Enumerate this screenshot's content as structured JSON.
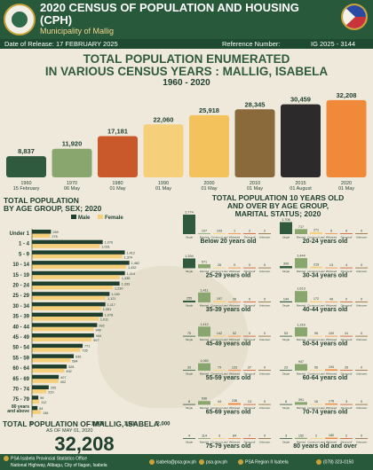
{
  "header": {
    "title": "2020 CENSUS OF POPULATION AND HOUSING (CPH)",
    "municipality": "Municipality of Mallig",
    "release_label": "Date of Release: 17 FEBRUARY 2025",
    "ref_label": "Reference Number:",
    "ref_value": "IG 2025 - 3144"
  },
  "main_title_line1": "TOTAL POPULATION ENUMERATED",
  "main_title_line2": "IN VARIOUS CENSUS YEARS : MALLIG, ISABELA",
  "range": "1960 - 2020",
  "colors": {
    "header": "#27593a",
    "male": "#1f3f2e",
    "female": "#f6cf7a",
    "accent": "#f08a3a"
  },
  "chart_data": [
    {
      "type": "bar",
      "title": "TOTAL POPULATION ENUMERATED IN VARIOUS CENSUS YEARS : MALLIG, ISABELA",
      "subtitle": "1960 - 2020",
      "categories": [
        "1960\n15 February",
        "1970\n06 May",
        "1980\n01 May",
        "1990\n01 May",
        "2000\n01 May",
        "2010\n01 May",
        "2015\n01 August",
        "2020\n01 May"
      ],
      "years": [
        "1960",
        "1970",
        "1980",
        "1990",
        "2000",
        "2010",
        "2015",
        "2020"
      ],
      "dates": [
        "15 February",
        "06 May",
        "01 May",
        "01 May",
        "01 May",
        "01 May",
        "01 August",
        "01 May"
      ],
      "values": [
        8837,
        11920,
        17181,
        22060,
        25918,
        28345,
        30459,
        32208
      ],
      "value_labels": [
        "8,837",
        "11,920",
        "17,181",
        "22,060",
        "25,918",
        "28,345",
        "30,459",
        "32,208"
      ],
      "bar_colors": [
        "#2f5a3e",
        "#8aa66f",
        "#c9582a",
        "#f6cf7a",
        "#f3c25c",
        "#8a6a3a",
        "#2c2a2a",
        "#f08a3a"
      ],
      "ylim": [
        0,
        34000
      ],
      "grid": false
    },
    {
      "type": "bar",
      "orientation": "horizontal",
      "title": "TOTAL POPULATION BY AGE GROUP, SEX; 2020",
      "legend": [
        "Male",
        "Female"
      ],
      "categories": [
        "Under 1",
        "1 - 4",
        "5 - 9",
        "10 - 14",
        "15 - 19",
        "20 - 24",
        "25 - 29",
        "30 - 34",
        "35 - 39",
        "40 - 44",
        "45 - 49",
        "50 - 54",
        "55 - 59",
        "60 - 64",
        "65 - 69",
        "70 - 74",
        "75 - 79",
        "80 years and above"
      ],
      "series": [
        {
          "name": "Male",
          "values": [
            289,
            1076,
            1412,
            1482,
            1414,
            1333,
            1180,
            1117,
            1078,
            992,
            944,
            771,
            635,
            528,
            407,
            255,
            96,
            84
          ]
        },
        {
          "name": "Female",
          "values": [
            276,
            1031,
            1374,
            1432,
            1336,
            1230,
            1121,
            1051,
            1011,
            940,
            907,
            735,
            584,
            492,
            402,
            220,
            112,
            136
          ]
        }
      ],
      "xlim": [
        0,
        2000
      ],
      "xticks": [
        "0",
        "1,000",
        "1,500",
        "2,000"
      ]
    },
    {
      "type": "bar",
      "title": "TOTAL POPULATION 10 YEARS OLD AND OVER BY AGE GROUP, MARITAL STATUS; 2020",
      "categories": [
        "Single",
        "Married",
        "Common Law/ Live-in",
        "Widowed",
        "Divorced/ Separated",
        "Unknown"
      ],
      "panels": [
        {
          "label": "Below 20 years old",
          "values": [
            2774,
            107,
            103,
            1,
            2,
            2
          ]
        },
        {
          "label": "20-24 years old",
          "values": [
            1706,
            717,
            271,
            5,
            9,
            0
          ]
        },
        {
          "label": "25-29 years old",
          "values": [
            1394,
            571,
            26,
            0,
            0,
            0
          ]
        },
        {
          "label": "30-34 years old",
          "values": [
            309,
            1444,
            219,
            13,
            4,
            0
          ]
        },
        {
          "label": "35-39 years old",
          "values": [
            255,
            1411,
            197,
            26,
            0,
            0
          ]
        },
        {
          "label": "40-44 years old",
          "values": [
            144,
            1613,
            172,
            49,
            0,
            0
          ]
        },
        {
          "label": "45-49 years old",
          "values": [
            75,
            1412,
            142,
            52,
            0,
            0
          ]
        },
        {
          "label": "50-54 years old",
          "values": [
            53,
            1316,
            95,
            100,
            41,
            0
          ]
        },
        {
          "label": "55-59 years old",
          "values": [
            33,
            1060,
            79,
            123,
            37,
            0
          ]
        },
        {
          "label": "60-64 years old",
          "values": [
            23,
            947,
            56,
            194,
            26,
            0
          ]
        },
        {
          "label": "65-69 years old",
          "values": [
            8,
            536,
            44,
            236,
            13,
            0
          ]
        },
        {
          "label": "70-74 years old",
          "values": [
            8,
            391,
            16,
            178,
            3,
            0
          ]
        },
        {
          "label": "75-79 years old",
          "values": [
            4,
            114,
            3,
            84,
            7,
            0
          ]
        },
        {
          "label": "80 years old and over",
          "values": [
            3,
            152,
            2,
            180,
            2,
            0
          ]
        }
      ]
    }
  ],
  "age_section_title1": "TOTAL POPULATION",
  "age_section_title2": "BY AGE GROUP, SEX; 2020",
  "marital_title1": "TOTAL POPULATION 10 YEARS OLD",
  "marital_title2": "AND OVER BY AGE GROUP,",
  "marital_title3": "MARITAL STATUS; 2020",
  "total": {
    "label": "TOTAL POPULATION OF MALLIG, ISABELA",
    "sub": "AS OF MAY 01, 2020",
    "value": "32,208"
  },
  "footer": {
    "office": "PSA Isabela Provincial Statistics Office",
    "address": "National Highway, Alibagu, City of Ilagan, Isabela",
    "email": "isabela@psa.gov.ph",
    "web": "psa.gov.ph",
    "fb": "PSA Region II Isabela",
    "phone": "(078) 323-0150"
  }
}
